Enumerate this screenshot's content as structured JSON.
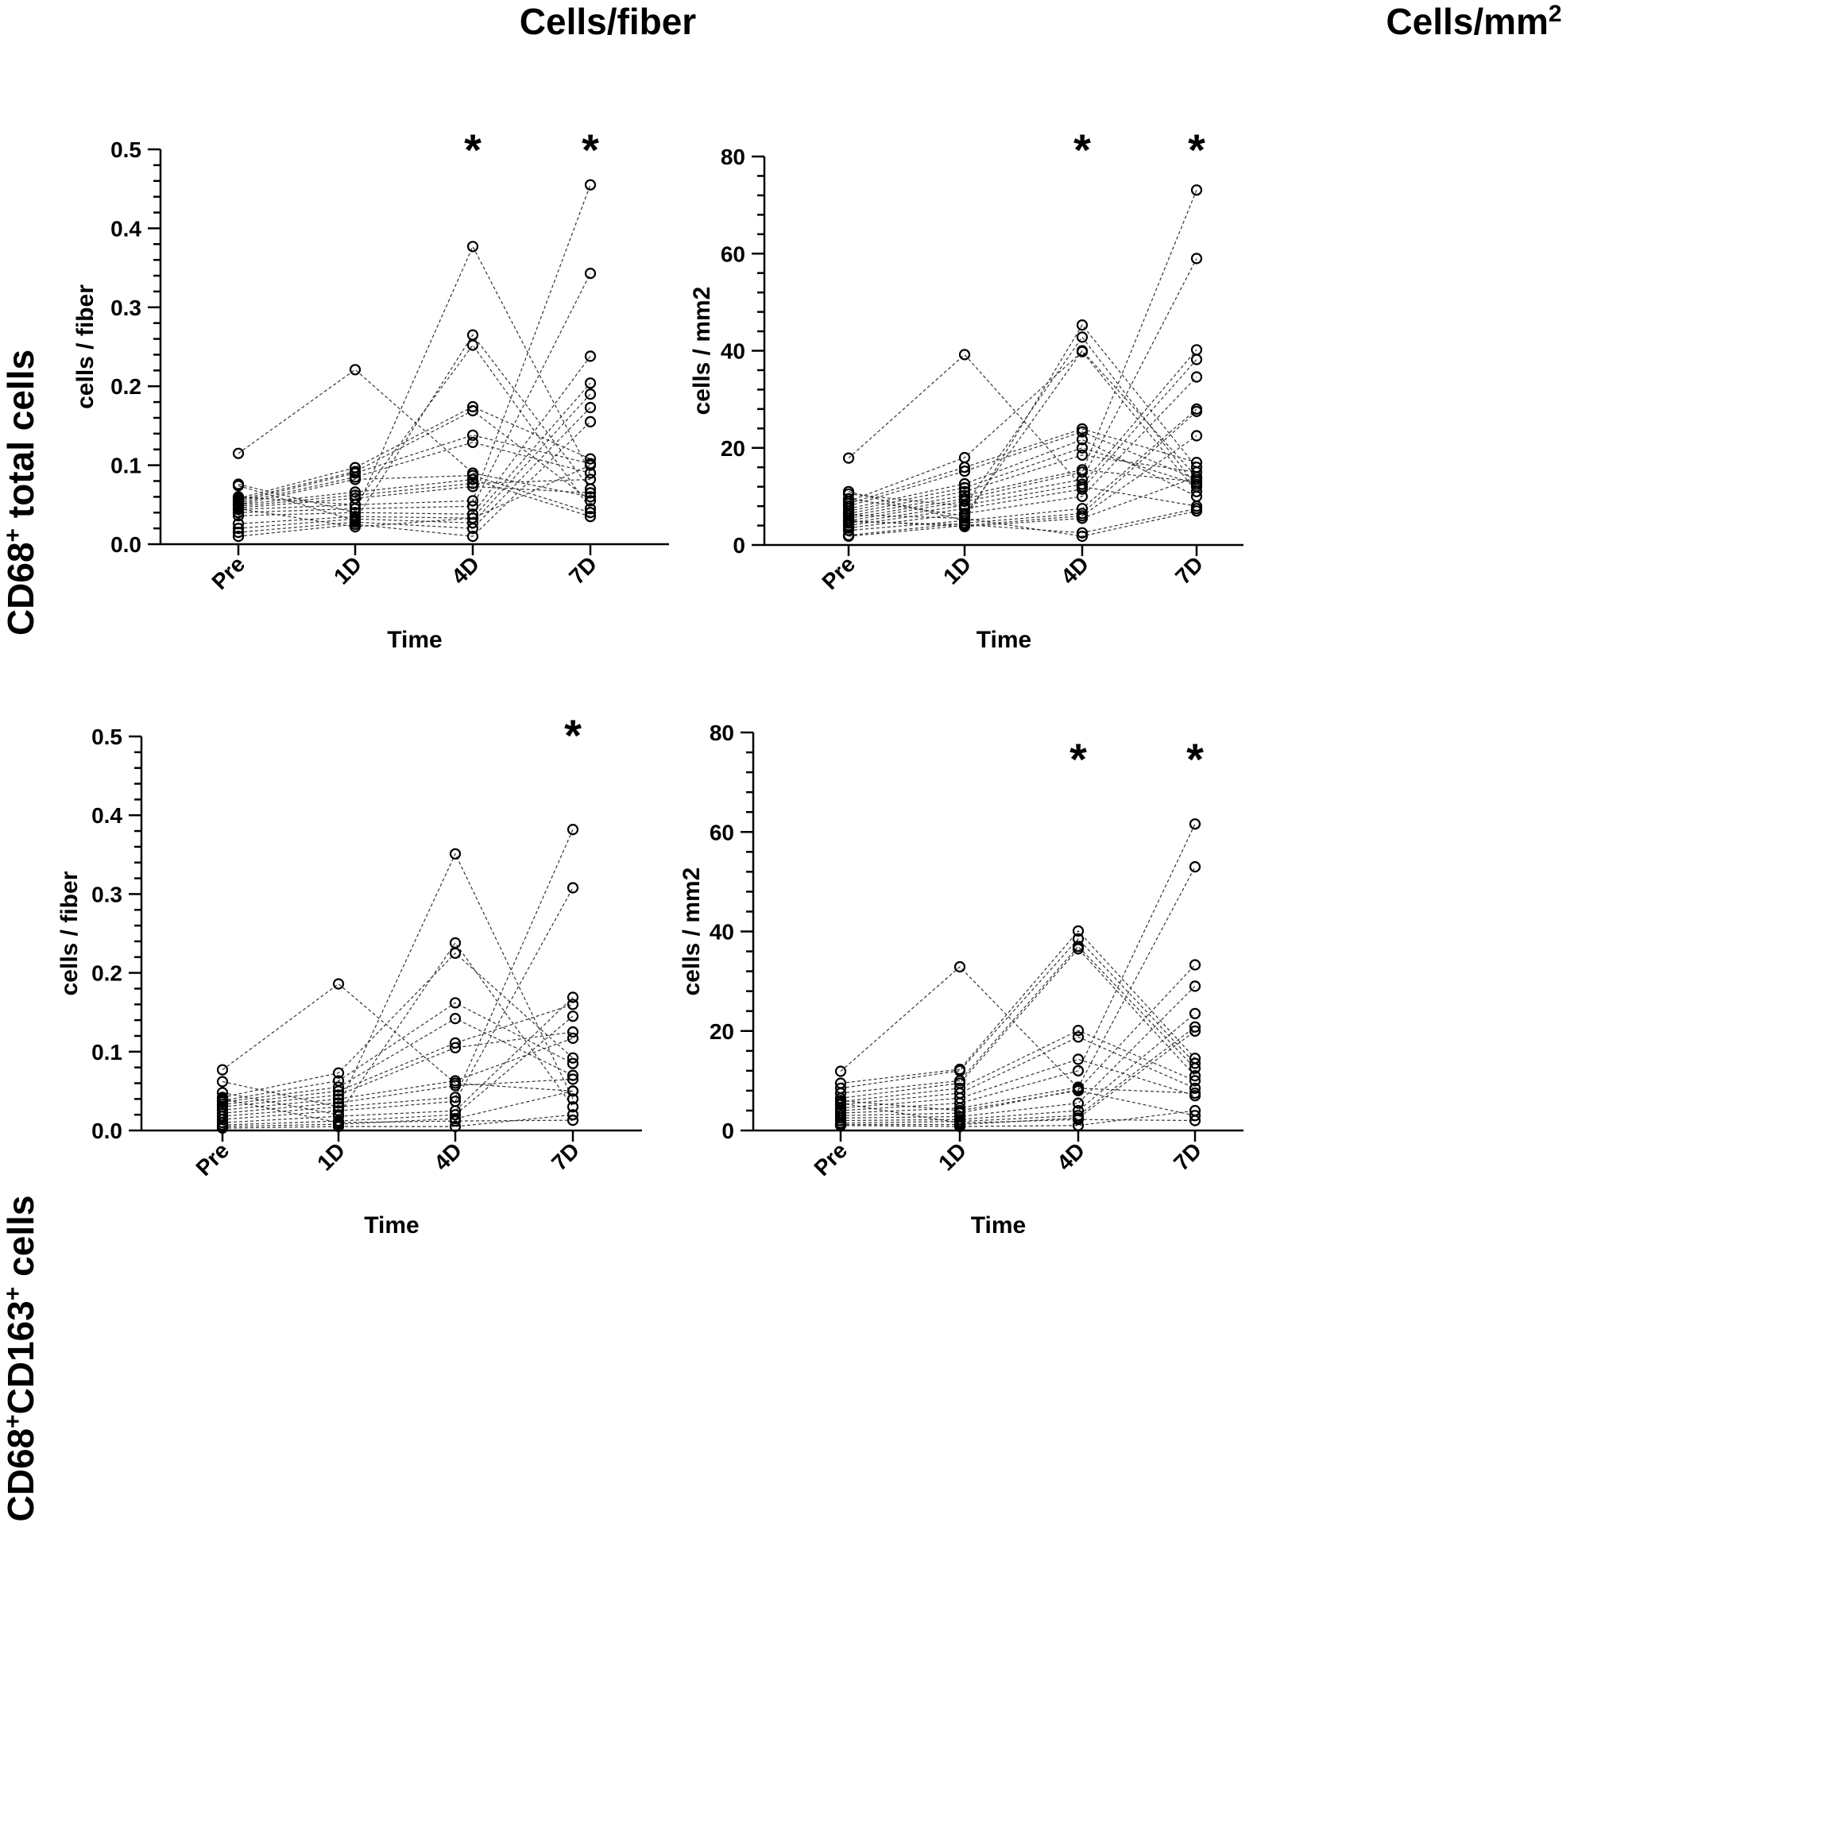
{
  "columns": [
    "Cells/fiber",
    "Cells/mm"
  ],
  "column_superscript": "2",
  "rows": [
    {
      "title_pre": "CD68",
      "title_sup1": "+",
      "title_mid": " total cells",
      "title_sup2": "",
      "title_post": ""
    },
    {
      "title_pre": "CD68",
      "title_sup1": "+",
      "title_mid": "CD163",
      "title_sup2": "+",
      "title_post": " cells"
    }
  ],
  "chart_data": [
    {
      "id": "A",
      "type": "line",
      "title": "",
      "xlabel": "Time",
      "ylabel": "cells / fiber",
      "categories": [
        "Pre",
        "1D",
        "4D",
        "7D"
      ],
      "ylim": [
        0,
        0.5
      ],
      "yticks": [
        0.0,
        0.1,
        0.2,
        0.3,
        0.4,
        0.5
      ],
      "ytick_labels": [
        "0.0",
        "0.1",
        "0.2",
        "0.3",
        "0.4",
        "0.5"
      ],
      "minor_per_major": 4,
      "significance": [
        {
          "category": "4D",
          "label": "*"
        },
        {
          "category": "7D",
          "label": "*"
        }
      ],
      "series": [
        {
          "values": [
            0.115,
            0.221,
            0.09,
            0.06
          ]
        },
        {
          "values": [
            0.076,
            0.04,
            0.377,
            0.09
          ]
        },
        {
          "values": [
            0.074,
            0.03,
            0.265,
            0.07
          ]
        },
        {
          "values": [
            0.06,
            0.05,
            0.252,
            0.045
          ]
        },
        {
          "values": [
            0.058,
            0.097,
            0.174,
            0.108
          ]
        },
        {
          "values": [
            0.056,
            0.092,
            0.169,
            0.055
          ]
        },
        {
          "values": [
            0.054,
            0.09,
            0.138,
            0.102
          ]
        },
        {
          "values": [
            0.052,
            0.085,
            0.129,
            0.09
          ]
        },
        {
          "values": [
            0.05,
            0.082,
            0.087,
            0.04
          ]
        },
        {
          "values": [
            0.05,
            0.066,
            0.082,
            0.035
          ]
        },
        {
          "values": [
            0.048,
            0.062,
            0.077,
            0.082
          ]
        },
        {
          "values": [
            0.046,
            0.058,
            0.073,
            0.065
          ]
        },
        {
          "values": [
            0.044,
            0.05,
            0.055,
            0.455
          ]
        },
        {
          "values": [
            0.04,
            0.045,
            0.048,
            0.343
          ]
        },
        {
          "values": [
            0.036,
            0.04,
            0.038,
            0.238
          ]
        },
        {
          "values": [
            0.026,
            0.035,
            0.033,
            0.204
          ]
        },
        {
          "values": [
            0.02,
            0.032,
            0.027,
            0.19
          ]
        },
        {
          "values": [
            0.015,
            0.028,
            0.02,
            0.173
          ]
        },
        {
          "values": [
            0.01,
            0.025,
            0.01,
            0.155
          ]
        },
        {
          "values": [
            0.045,
            0.022,
            0.033,
            0.1
          ]
        }
      ]
    },
    {
      "id": "B",
      "type": "line",
      "title": "",
      "xlabel": "Time",
      "ylabel": "cells / mm2",
      "categories": [
        "Pre",
        "1D",
        "4D",
        "7D"
      ],
      "ylim": [
        0,
        80
      ],
      "yticks": [
        0,
        20,
        40,
        60,
        80
      ],
      "ytick_labels": [
        "0",
        "20",
        "40",
        "60",
        "80"
      ],
      "minor_per_major": 4,
      "significance": [
        {
          "category": "4D",
          "label": "*"
        },
        {
          "category": "7D",
          "label": "*"
        }
      ],
      "series": [
        {
          "values": [
            17.9,
            39.2,
            12.0,
            8.0
          ]
        },
        {
          "values": [
            11.0,
            5.0,
            45.3,
            16.0
          ]
        },
        {
          "values": [
            10.5,
            8.0,
            42.8,
            12.0
          ]
        },
        {
          "values": [
            9.5,
            6.0,
            40.0,
            14.0
          ]
        },
        {
          "values": [
            9.0,
            18.0,
            39.8,
            11.0
          ]
        },
        {
          "values": [
            8.5,
            16.0,
            23.9,
            17.0
          ]
        },
        {
          "values": [
            8.0,
            15.2,
            23.3,
            13.5
          ]
        },
        {
          "values": [
            7.5,
            12.6,
            21.7,
            10.0
          ]
        },
        {
          "values": [
            7.0,
            11.8,
            20.0,
            12.5
          ]
        },
        {
          "values": [
            6.5,
            11.0,
            18.5,
            15.0
          ]
        },
        {
          "values": [
            6.0,
            10.2,
            15.5,
            13.0
          ]
        },
        {
          "values": [
            5.5,
            9.5,
            15.0,
            73.1
          ]
        },
        {
          "values": [
            5.0,
            9.0,
            13.5,
            59.0
          ]
        },
        {
          "values": [
            4.5,
            8.2,
            12.5,
            40.2
          ]
        },
        {
          "values": [
            4.0,
            7.5,
            11.5,
            38.2
          ]
        },
        {
          "values": [
            3.5,
            6.5,
            10.0,
            34.6
          ]
        },
        {
          "values": [
            3.0,
            5.0,
            7.5,
            28.0
          ]
        },
        {
          "values": [
            2.0,
            4.5,
            6.5,
            27.5
          ]
        },
        {
          "values": [
            1.8,
            4.0,
            6.0,
            22.5
          ]
        },
        {
          "values": [
            5.0,
            3.8,
            5.5,
            14.0
          ]
        },
        {
          "values": [
            4.8,
            4.2,
            2.5,
            7.5
          ]
        },
        {
          "values": [
            6.2,
            5.5,
            1.8,
            7.0
          ]
        }
      ]
    },
    {
      "id": "C",
      "type": "line",
      "title": "",
      "xlabel": "Time",
      "ylabel": "cells / fiber",
      "categories": [
        "Pre",
        "1D",
        "4D",
        "7D"
      ],
      "ylim": [
        0,
        0.5
      ],
      "yticks": [
        0.0,
        0.1,
        0.2,
        0.3,
        0.4,
        0.5
      ],
      "ytick_labels": [
        "0.0",
        "0.1",
        "0.2",
        "0.3",
        "0.4",
        "0.5"
      ],
      "minor_per_major": 4,
      "significance": [
        {
          "category": "7D",
          "label": "*"
        }
      ],
      "series": [
        {
          "values": [
            0.077,
            0.186,
            0.06,
            0.05
          ]
        },
        {
          "values": [
            0.062,
            0.03,
            0.351,
            0.04
          ]
        },
        {
          "values": [
            0.048,
            0.02,
            0.238,
            0.03
          ]
        },
        {
          "values": [
            0.042,
            0.073,
            0.225,
            0.092
          ]
        },
        {
          "values": [
            0.038,
            0.063,
            0.162,
            0.085
          ]
        },
        {
          "values": [
            0.036,
            0.055,
            0.142,
            0.07
          ]
        },
        {
          "values": [
            0.033,
            0.05,
            0.111,
            0.16
          ]
        },
        {
          "values": [
            0.03,
            0.045,
            0.105,
            0.125
          ]
        },
        {
          "values": [
            0.026,
            0.04,
            0.063,
            0.117
          ]
        },
        {
          "values": [
            0.022,
            0.035,
            0.057,
            0.065
          ]
        },
        {
          "values": [
            0.018,
            0.03,
            0.042,
            0.382
          ]
        },
        {
          "values": [
            0.014,
            0.025,
            0.037,
            0.308
          ]
        },
        {
          "values": [
            0.01,
            0.018,
            0.025,
            0.169
          ]
        },
        {
          "values": [
            0.007,
            0.012,
            0.02,
            0.145
          ]
        },
        {
          "values": [
            0.005,
            0.008,
            0.015,
            0.05
          ]
        },
        {
          "values": [
            0.003,
            0.005,
            0.005,
            0.02
          ]
        },
        {
          "values": [
            0.04,
            0.01,
            0.012,
            0.013
          ]
        }
      ]
    },
    {
      "id": "D",
      "type": "line",
      "title": "",
      "xlabel": "Time",
      "ylabel": "cells / mm2",
      "categories": [
        "Pre",
        "1D",
        "4D",
        "7D"
      ],
      "ylim": [
        0,
        80
      ],
      "yticks": [
        0,
        20,
        40,
        60,
        80
      ],
      "ytick_labels": [
        "0",
        "20",
        "40",
        "60",
        "80"
      ],
      "minor_per_major": 4,
      "significance": [
        {
          "category": "4D",
          "label": "*"
        },
        {
          "category": "7D",
          "label": "*"
        }
      ],
      "series": [
        {
          "values": [
            11.9,
            32.9,
            8.5,
            7.5
          ]
        },
        {
          "values": [
            9.5,
            12.3,
            40.1,
            14.5
          ]
        },
        {
          "values": [
            8.5,
            12.0,
            38.5,
            13.5
          ]
        },
        {
          "values": [
            7.5,
            10.0,
            37.0,
            12.5
          ]
        },
        {
          "values": [
            6.5,
            9.5,
            36.5,
            11.0
          ]
        },
        {
          "values": [
            5.8,
            8.5,
            20.1,
            10.0
          ]
        },
        {
          "values": [
            5.2,
            7.5,
            18.8,
            8.5
          ]
        },
        {
          "values": [
            4.5,
            6.5,
            14.3,
            7.0
          ]
        },
        {
          "values": [
            4.0,
            5.5,
            12.0,
            61.6
          ]
        },
        {
          "values": [
            3.5,
            4.5,
            8.7,
            53.0
          ]
        },
        {
          "values": [
            3.0,
            3.5,
            8.2,
            33.3
          ]
        },
        {
          "values": [
            2.5,
            2.8,
            5.5,
            29.0
          ]
        },
        {
          "values": [
            2.0,
            2.2,
            4.0,
            23.5
          ]
        },
        {
          "values": [
            1.5,
            1.8,
            3.0,
            20.8
          ]
        },
        {
          "values": [
            1.2,
            1.2,
            2.5,
            20.0
          ]
        },
        {
          "values": [
            1.0,
            0.8,
            1.0,
            4.0
          ]
        },
        {
          "values": [
            5.5,
            1.5,
            2.2,
            2.0
          ]
        },
        {
          "values": [
            6.0,
            4.0,
            8.0,
            3.0
          ]
        }
      ]
    }
  ]
}
